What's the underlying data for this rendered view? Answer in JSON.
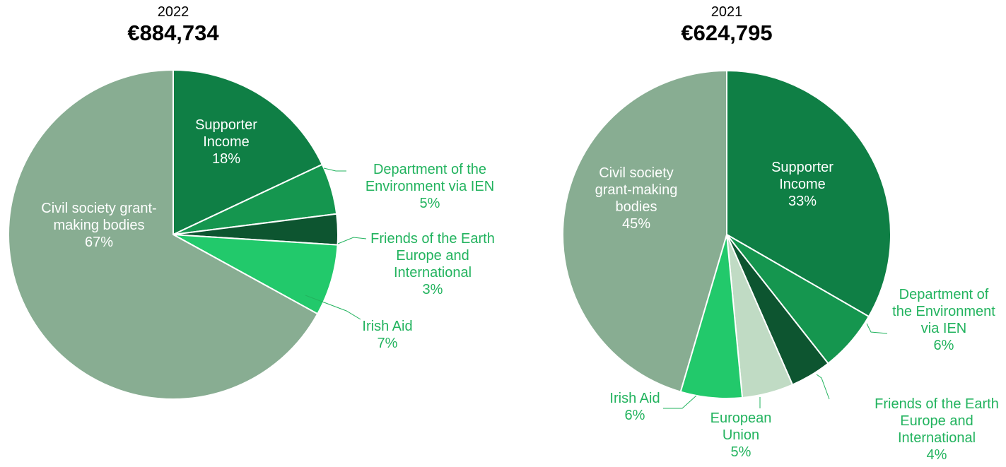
{
  "chart_data": [
    {
      "type": "pie",
      "title": "2022",
      "subtitle": "€884,734",
      "categories": [
        "Supporter Income",
        "Department of the Environment via IEN",
        "Friends of the Earth Europe and International",
        "Irish Aid",
        "Civil society grant-making bodies"
      ],
      "values": [
        18,
        5,
        3,
        7,
        67
      ],
      "value_labels": [
        "18%",
        "5%",
        "3%",
        "7%",
        "67%"
      ],
      "colors": [
        "#0f7f45",
        "#15964f",
        "#0d5530",
        "#22c96b",
        "#88ad92"
      ]
    },
    {
      "type": "pie",
      "title": "2021",
      "subtitle": "€624,795",
      "categories": [
        "Supporter Income",
        "Department of the Environment via IEN",
        "Friends of the Earth Europe and International",
        "European Union",
        "Irish Aid",
        "Civil society grant-making bodies"
      ],
      "values": [
        33,
        6,
        4,
        5,
        6,
        45
      ],
      "value_labels": [
        "33%",
        "6%",
        "4%",
        "5%",
        "6%",
        "45%"
      ],
      "colors": [
        "#0f7f45",
        "#15964f",
        "#0d5530",
        "#c0dbc4",
        "#22c96b",
        "#88ad92"
      ]
    }
  ]
}
